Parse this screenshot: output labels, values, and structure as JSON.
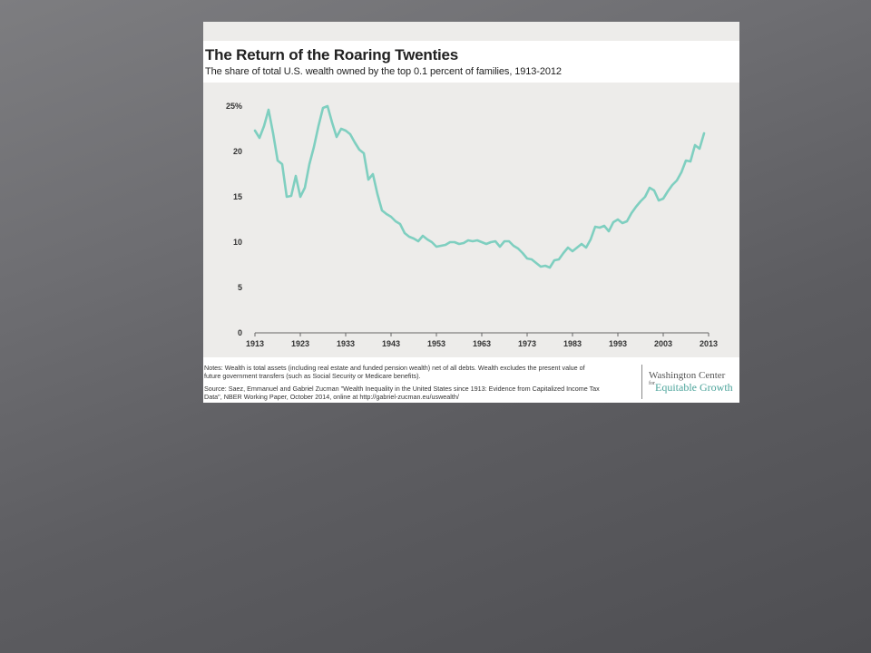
{
  "chart_data": {
    "type": "line",
    "title": "The Return of the Roaring Twenties",
    "subtitle": "The share of total U.S. wealth owned by the top 0.1 percent of families, 1913-2012",
    "ylim": [
      0,
      25
    ],
    "xlim": [
      1913,
      2013
    ],
    "y_ticks": [
      "0",
      "5",
      "10",
      "15",
      "20",
      "25%"
    ],
    "x_ticks": [
      "1913",
      "1923",
      "1933",
      "1943",
      "1953",
      "1963",
      "1973",
      "1983",
      "1993",
      "2003",
      "2013"
    ],
    "grid": false,
    "line_color": "#7fcfc0",
    "x": [
      1913,
      1914,
      1915,
      1916,
      1917,
      1918,
      1919,
      1920,
      1921,
      1922,
      1923,
      1924,
      1925,
      1926,
      1927,
      1928,
      1929,
      1930,
      1931,
      1932,
      1933,
      1934,
      1935,
      1936,
      1937,
      1938,
      1939,
      1940,
      1941,
      1942,
      1943,
      1944,
      1945,
      1946,
      1947,
      1948,
      1949,
      1950,
      1951,
      1952,
      1953,
      1954,
      1955,
      1956,
      1957,
      1958,
      1959,
      1960,
      1961,
      1962,
      1963,
      1964,
      1965,
      1966,
      1967,
      1968,
      1969,
      1970,
      1971,
      1972,
      1973,
      1974,
      1975,
      1976,
      1977,
      1978,
      1979,
      1980,
      1981,
      1982,
      1983,
      1984,
      1985,
      1986,
      1987,
      1988,
      1989,
      1990,
      1991,
      1992,
      1993,
      1994,
      1995,
      1996,
      1997,
      1998,
      1999,
      2000,
      2001,
      2002,
      2003,
      2004,
      2005,
      2006,
      2007,
      2008,
      2009,
      2010,
      2011,
      2012
    ],
    "values": [
      22.3,
      21.5,
      22.8,
      24.6,
      22.0,
      19.0,
      18.6,
      15.0,
      15.1,
      17.3,
      15.0,
      16.0,
      18.6,
      20.5,
      22.8,
      24.8,
      25.0,
      23.2,
      21.6,
      22.5,
      22.3,
      21.9,
      21.0,
      20.2,
      19.8,
      16.9,
      17.5,
      15.3,
      13.5,
      13.1,
      12.8,
      12.3,
      12.0,
      11.0,
      10.6,
      10.4,
      10.1,
      10.7,
      10.3,
      10.0,
      9.5,
      9.6,
      9.7,
      10.0,
      10.0,
      9.8,
      9.9,
      10.2,
      10.1,
      10.2,
      10.0,
      9.8,
      10.0,
      10.1,
      9.5,
      10.1,
      10.1,
      9.6,
      9.3,
      8.8,
      8.2,
      8.1,
      7.7,
      7.3,
      7.4,
      7.2,
      8.0,
      8.1,
      8.8,
      9.4,
      9.0,
      9.4,
      9.8,
      9.4,
      10.3,
      11.7,
      11.6,
      11.8,
      11.2,
      12.2,
      12.5,
      12.1,
      12.3,
      13.2,
      13.9,
      14.5,
      15.0,
      16.0,
      15.7,
      14.6,
      14.8,
      15.6,
      16.3,
      16.8,
      17.7,
      19.0,
      18.9,
      20.7,
      20.3,
      22.0
    ]
  },
  "notes": {
    "notes_text": "Notes: Wealth is total assets (including real estate and funded pension wealth) net of all debts. Wealth excludes the present value of future government transfers (such as Social Security or Medicare benefits).",
    "source_text": "Source: Saez, Emmanuel and Gabriel Zucman \"Wealth Inequality in the United States since 1913: Evidence from Capitalized Income Tax Data\", NBER Working Paper, October 2014, online at http://gabriel-zucman.eu/uswealth/"
  },
  "logo": {
    "line1": "Washington Center",
    "for": "for",
    "line2": "Equitable Growth"
  }
}
